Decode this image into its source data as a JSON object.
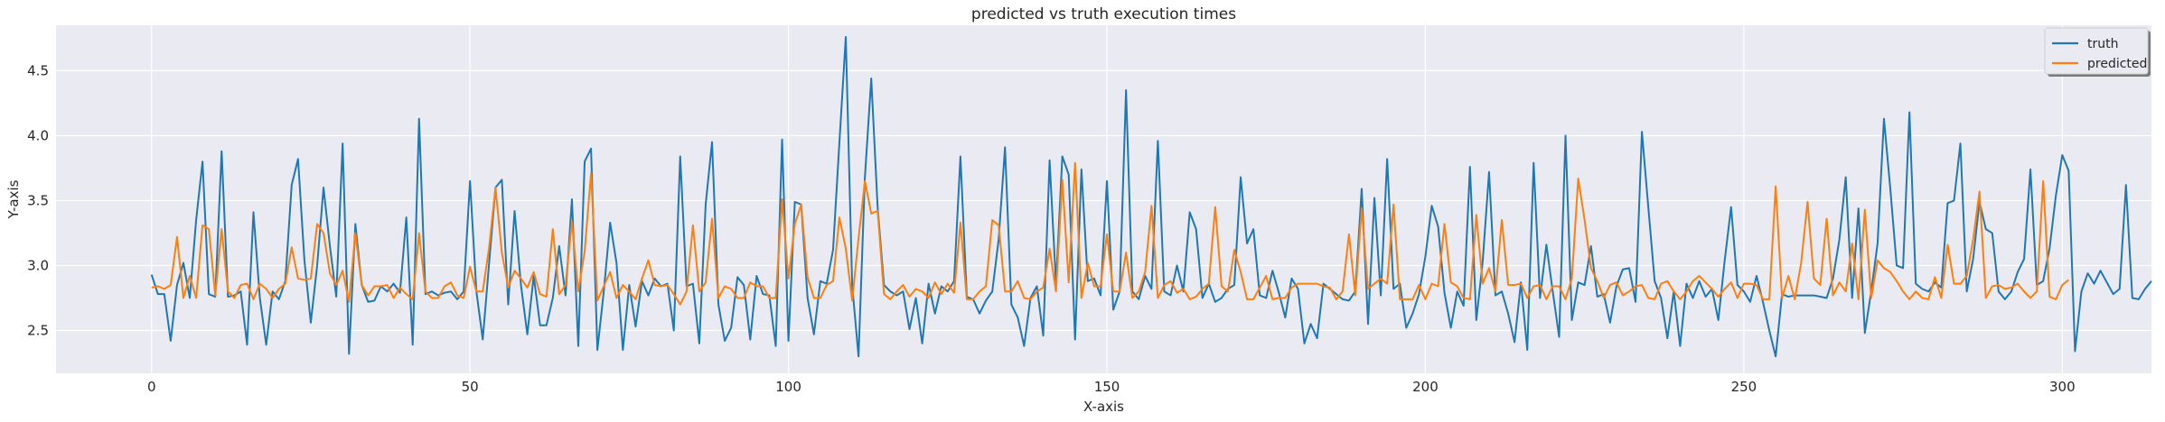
{
  "chart_data": {
    "type": "line",
    "title": "predicted vs truth execution times",
    "xlabel": "X-axis",
    "ylabel": "Y-axis",
    "xlim": [
      -15,
      314
    ],
    "ylim": [
      2.17,
      4.85
    ],
    "xticks": [
      0,
      50,
      100,
      150,
      200,
      250,
      300
    ],
    "yticks": [
      2.5,
      3.0,
      3.5,
      4.0,
      4.5
    ],
    "xtick_labels": [
      "0",
      "50",
      "100",
      "150",
      "200",
      "250",
      "300"
    ],
    "ytick_labels": [
      "2.5",
      "3.0",
      "3.5",
      "4.0",
      "4.5"
    ],
    "grid": true,
    "legend_position": "top-right",
    "series": [
      {
        "name": "truth",
        "color": "#1f77b4",
        "values": [
          2.93,
          2.78,
          2.78,
          2.42,
          2.85,
          3.02,
          2.75,
          3.35,
          3.8,
          2.78,
          2.76,
          3.88,
          2.76,
          2.77,
          2.8,
          2.39,
          3.41,
          2.75,
          2.39,
          2.8,
          2.74,
          2.88,
          3.62,
          3.82,
          3.04,
          2.56,
          3.0,
          3.6,
          3.15,
          2.76,
          3.94,
          2.32,
          3.32,
          2.85,
          2.72,
          2.73,
          2.84,
          2.8,
          2.86,
          2.79,
          3.37,
          2.39,
          4.13,
          2.78,
          2.8,
          2.77,
          2.79,
          2.8,
          2.74,
          2.8,
          3.65,
          2.8,
          2.43,
          3.02,
          3.6,
          3.66,
          2.7,
          3.42,
          2.85,
          2.47,
          2.92,
          2.54,
          2.54,
          2.75,
          3.15,
          2.77,
          3.51,
          2.38,
          3.8,
          3.9,
          2.35,
          2.8,
          3.33,
          3.02,
          2.35,
          2.85,
          2.53,
          2.88,
          2.77,
          2.9,
          2.84,
          2.86,
          2.5,
          3.84,
          2.84,
          2.86,
          2.4,
          3.47,
          3.95,
          2.7,
          2.42,
          2.52,
          2.91,
          2.85,
          2.43,
          2.92,
          2.78,
          2.77,
          2.38,
          3.97,
          2.42,
          3.49,
          3.47,
          2.75,
          2.47,
          2.88,
          2.86,
          3.12,
          3.95,
          4.76,
          2.85,
          2.3,
          3.68,
          4.44,
          3.45,
          2.85,
          2.8,
          2.77,
          2.8,
          2.51,
          2.75,
          2.4,
          2.86,
          2.63,
          2.84,
          2.8,
          2.88,
          3.84,
          2.76,
          2.74,
          2.63,
          2.73,
          2.8,
          3.2,
          3.91,
          2.7,
          2.6,
          2.38,
          2.75,
          2.84,
          2.46,
          3.81,
          2.86,
          3.84,
          3.7,
          2.43,
          3.74,
          2.88,
          2.9,
          2.77,
          3.65,
          2.66,
          2.8,
          4.35,
          2.8,
          2.74,
          2.92,
          2.82,
          3.96,
          2.8,
          2.77,
          3.0,
          2.8,
          3.41,
          3.28,
          2.75,
          2.86,
          2.72,
          2.75,
          2.82,
          2.85,
          3.68,
          3.17,
          3.28,
          2.77,
          2.75,
          2.96,
          2.79,
          2.6,
          2.9,
          2.82,
          2.4,
          2.55,
          2.44,
          2.86,
          2.82,
          2.78,
          2.74,
          2.73,
          2.8,
          3.59,
          2.55,
          3.52,
          2.77,
          3.82,
          2.82,
          2.86,
          2.52,
          2.63,
          2.78,
          3.07,
          3.46,
          3.3,
          2.79,
          2.52,
          2.8,
          2.69,
          3.76,
          2.58,
          3.03,
          3.72,
          2.77,
          2.8,
          2.63,
          2.41,
          2.87,
          2.35,
          3.79,
          2.75,
          3.16,
          2.8,
          2.45,
          4.0,
          2.58,
          2.87,
          2.85,
          3.15,
          2.76,
          2.78,
          2.56,
          2.84,
          2.97,
          2.98,
          2.72,
          4.03,
          3.45,
          2.88,
          2.75,
          2.44,
          2.8,
          2.38,
          2.86,
          2.75,
          2.88,
          2.76,
          2.82,
          2.58,
          3.04,
          3.45,
          2.85,
          2.8,
          2.72,
          2.92,
          2.72,
          2.5,
          2.3,
          2.78,
          2.76,
          2.77,
          2.77,
          2.77,
          2.77,
          2.76,
          2.75,
          2.9,
          3.2,
          3.68,
          2.75,
          3.44,
          2.48,
          2.8,
          3.17,
          4.13,
          3.59,
          3.0,
          2.98,
          4.18,
          2.86,
          2.82,
          2.8,
          2.87,
          2.83,
          3.48,
          3.5,
          3.94,
          2.8,
          3.05,
          3.49,
          3.28,
          3.25,
          2.8,
          2.74,
          2.8,
          2.95,
          3.05,
          3.74,
          2.85,
          2.88,
          3.13,
          3.54,
          3.85,
          3.73,
          2.34,
          2.8,
          2.94,
          2.86,
          2.96,
          2.87,
          2.78,
          2.82,
          3.62,
          2.75,
          2.74,
          2.82,
          2.88
        ]
      },
      {
        "name": "predicted",
        "color": "#ff7f0e",
        "values": [
          2.83,
          2.84,
          2.82,
          2.85,
          3.22,
          2.75,
          2.92,
          2.75,
          3.31,
          3.28,
          2.77,
          3.28,
          2.8,
          2.75,
          2.85,
          2.86,
          2.74,
          2.86,
          2.82,
          2.75,
          2.82,
          2.86,
          3.14,
          2.9,
          2.89,
          2.9,
          3.32,
          3.25,
          2.94,
          2.85,
          2.96,
          2.72,
          3.25,
          2.85,
          2.77,
          2.84,
          2.84,
          2.85,
          2.75,
          2.83,
          2.78,
          2.74,
          3.25,
          2.8,
          2.75,
          2.75,
          2.84,
          2.87,
          2.77,
          2.75,
          2.99,
          2.8,
          2.8,
          3.14,
          3.6,
          3.1,
          2.83,
          2.96,
          2.9,
          2.83,
          2.95,
          2.78,
          2.76,
          3.28,
          2.78,
          2.85,
          3.34,
          2.8,
          3.11,
          3.71,
          2.73,
          2.84,
          2.95,
          2.75,
          2.85,
          2.8,
          2.74,
          2.9,
          3.04,
          2.85,
          2.84,
          2.85,
          2.78,
          2.7,
          2.8,
          3.31,
          2.8,
          2.87,
          3.36,
          2.75,
          2.84,
          2.82,
          2.75,
          2.75,
          2.87,
          2.84,
          2.84,
          2.75,
          2.75,
          3.51,
          2.9,
          3.32,
          3.47,
          2.91,
          2.75,
          2.75,
          2.85,
          2.88,
          3.37,
          3.13,
          2.73,
          3.21,
          3.65,
          3.4,
          3.42,
          2.78,
          2.74,
          2.8,
          2.85,
          2.76,
          2.82,
          2.8,
          2.75,
          2.87,
          2.78,
          2.86,
          2.79,
          3.33,
          2.74,
          2.74,
          2.8,
          2.84,
          3.35,
          3.31,
          2.8,
          2.8,
          2.88,
          2.75,
          2.74,
          2.8,
          2.83,
          3.13,
          2.8,
          3.66,
          2.87,
          3.79,
          2.75,
          3.02,
          2.84,
          2.84,
          3.24,
          2.8,
          2.8,
          3.1,
          2.75,
          2.8,
          2.95,
          3.46,
          2.75,
          2.85,
          2.88,
          2.79,
          2.82,
          2.74,
          2.76,
          2.82,
          2.86,
          3.45,
          2.84,
          2.8,
          3.12,
          2.95,
          2.74,
          2.74,
          2.83,
          2.92,
          2.74,
          2.75,
          2.75,
          2.83,
          2.86,
          2.86,
          2.86,
          2.86,
          2.84,
          2.83,
          2.74,
          2.8,
          3.24,
          2.77,
          3.44,
          2.82,
          2.86,
          2.9,
          2.86,
          3.47,
          2.74,
          2.74,
          2.74,
          2.85,
          2.74,
          2.86,
          2.84,
          3.32,
          2.87,
          2.84,
          2.75,
          2.74,
          3.39,
          2.86,
          2.98,
          2.8,
          3.35,
          2.85,
          2.85,
          2.86,
          2.75,
          2.84,
          2.85,
          2.74,
          2.84,
          2.84,
          2.74,
          2.9,
          3.67,
          3.35,
          2.98,
          2.88,
          2.75,
          2.85,
          2.87,
          2.77,
          2.8,
          2.84,
          2.85,
          2.75,
          2.74,
          2.86,
          2.88,
          2.8,
          2.74,
          2.8,
          2.88,
          2.92,
          2.87,
          2.82,
          2.76,
          2.82,
          2.87,
          2.75,
          2.86,
          2.86,
          2.85,
          2.74,
          2.74,
          3.61,
          2.75,
          2.92,
          2.74,
          3.02,
          3.49,
          2.9,
          2.85,
          3.36,
          2.77,
          2.87,
          2.8,
          3.17,
          2.74,
          3.43,
          2.75,
          3.04,
          2.98,
          2.95,
          2.88,
          2.8,
          2.74,
          2.8,
          2.75,
          2.74,
          2.91,
          2.75,
          3.16,
          2.86,
          2.86,
          2.92,
          3.2,
          3.57,
          2.75,
          2.84,
          2.85,
          2.82,
          2.83,
          2.86,
          2.8,
          2.75,
          2.8,
          3.65,
          2.76,
          2.74,
          2.85,
          2.89
        ]
      }
    ]
  }
}
